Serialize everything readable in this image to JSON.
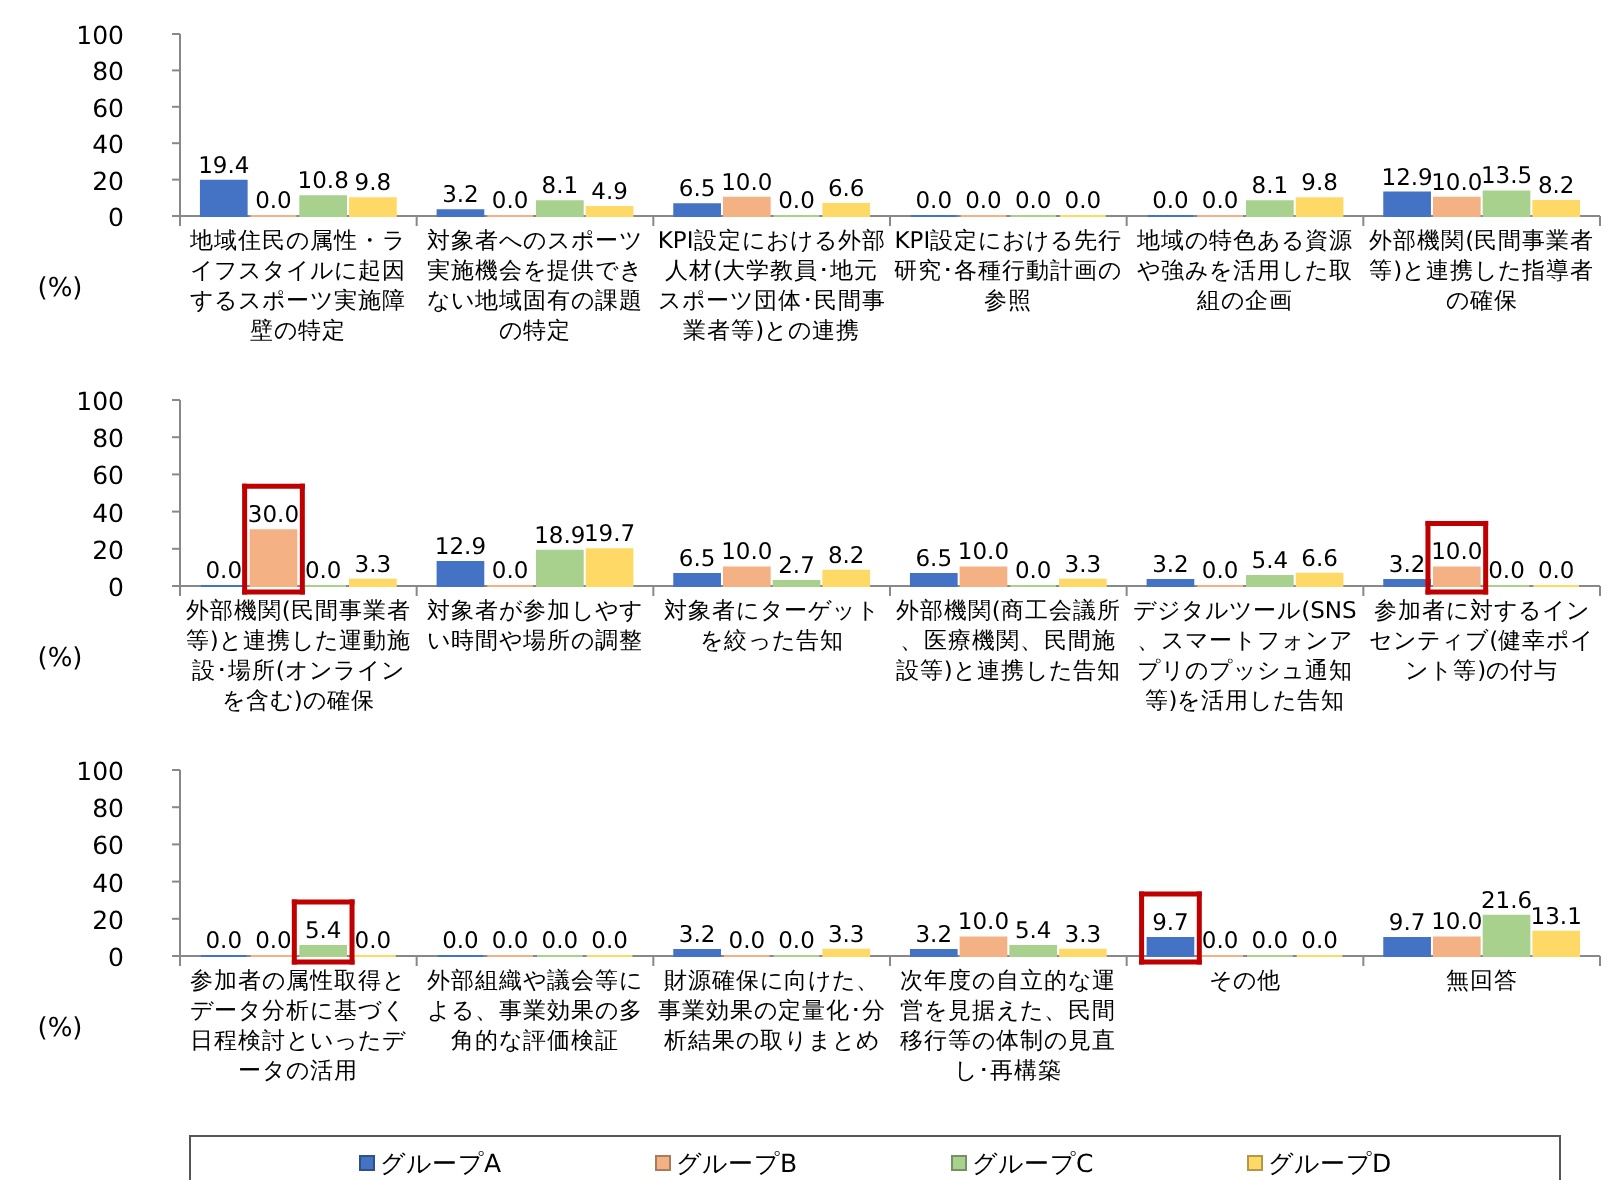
{
  "chart_data": [
    {
      "type": "bar",
      "ylabel": "(%)",
      "categories": [
        "地域住民の属性・ライフスタイルに起因するスポーツ実施障壁の特定",
        "対象者へのスポーツ実施機会を提供できない地域固有の課題の特定",
        "KPI設定における外部人材(大学教員･地元スポーツ団体･民間事業者等)との連携",
        "KPI設定における先行研究･各種行動計画の参照",
        "地域の特色ある資源や強みを活用した取組の企画",
        "外部機関(民間事業者等)と連携した指導者の確保"
      ],
      "series": [
        {
          "color": "#4472c4",
          "values": [
            19.4,
            3.2,
            6.5,
            0.0,
            0.0,
            12.9
          ],
          "value_labels": [
            "19.4",
            "3.2",
            "6.5",
            "0.0",
            "0.0",
            "12.9"
          ]
        },
        {
          "color": "#f4b183",
          "values": [
            0.0,
            0.0,
            10.0,
            0.0,
            0.0,
            10.0
          ],
          "value_labels": [
            "0.0",
            "0.0",
            "10.0",
            "0.0",
            "0.0",
            "10.0"
          ]
        },
        {
          "color": "#a9d18e",
          "values": [
            10.8,
            8.1,
            0.0,
            0.0,
            8.1,
            13.5
          ],
          "value_labels": [
            "10.8",
            "8.1",
            "0.0",
            "0.0",
            "8.1",
            "13.5"
          ]
        },
        {
          "color": "#ffd966",
          "values": [
            9.8,
            4.9,
            6.6,
            0.0,
            9.8,
            8.2
          ],
          "value_labels": [
            "9.8",
            "4.9",
            "6.6",
            "0.0",
            "9.8",
            "8.2"
          ]
        }
      ],
      "ylim": [
        0,
        100
      ],
      "yticks": [
        0,
        20,
        40,
        60,
        80,
        100
      ]
    },
    {
      "type": "bar",
      "ylabel": "(%)",
      "categories": [
        "外部機関(民間事業者等)と連携した運動施設･場所(オンラインを含む)の確保",
        "対象者が参加しやすい時間や場所の調整",
        "対象者にターゲットを絞った告知",
        "外部機関(商工会議所、医療機関、民間施設等)と連携した告知",
        "デジタルツール(SNS、スマートフォンアプリのプッシュ通知等)を活用した告知",
        "参加者に対するインセンティブ(健幸ポイント等)の付与"
      ],
      "series": [
        {
          "color": "#4472c4",
          "values": [
            0.0,
            12.9,
            6.5,
            6.5,
            3.2,
            3.2
          ],
          "value_labels": [
            "0.0",
            "12.9",
            "6.5",
            "6.5",
            "3.2",
            "3.2"
          ]
        },
        {
          "color": "#f4b183",
          "values": [
            30.0,
            0.0,
            10.0,
            10.0,
            0.0,
            10.0
          ],
          "value_labels": [
            "30.0",
            "0.0",
            "10.0",
            "10.0",
            "0.0",
            "10.0"
          ]
        },
        {
          "color": "#a9d18e",
          "values": [
            0.0,
            18.9,
            2.7,
            0.0,
            5.4,
            0.0
          ],
          "value_labels": [
            "0.0",
            "18.9",
            "2.7",
            "0.0",
            "5.4",
            "0.0"
          ]
        },
        {
          "color": "#ffd966",
          "values": [
            3.3,
            19.7,
            8.2,
            3.3,
            6.6,
            0.0
          ],
          "value_labels": [
            "3.3",
            "19.7",
            "8.2",
            "3.3",
            "6.6",
            "0.0"
          ]
        }
      ],
      "ylim": [
        0,
        100
      ],
      "yticks": [
        0,
        20,
        40,
        60,
        80,
        100
      ]
    },
    {
      "type": "bar",
      "ylabel": "(%)",
      "categories": [
        "参加者の属性取得とデータ分析に基づく日程検討といったデータの活用",
        "外部組織や議会等による、事業効果の多角的な評価検証",
        "財源確保に向けた、事業効果の定量化･分析結果の取りまとめ",
        "次年度の自立的な運営を見据えた、民間移行等の体制の見直し･再構築",
        "その他",
        "無回答"
      ],
      "series": [
        {
          "name": "グループA",
          "color": "#4472c4",
          "values": [
            0.0,
            0.0,
            3.2,
            3.2,
            9.7,
            9.7
          ],
          "value_labels": [
            "0.0",
            "0.0",
            "3.2",
            "3.2",
            "9.7",
            "9.7"
          ]
        },
        {
          "name": "グループB",
          "color": "#f4b183",
          "values": [
            0.0,
            0.0,
            0.0,
            10.0,
            0.0,
            10.0
          ],
          "value_labels": [
            "0.0",
            "0.0",
            "0.0",
            "10.0",
            "0.0",
            "10.0"
          ]
        },
        {
          "name": "グループC",
          "color": "#a9d18e",
          "values": [
            5.4,
            0.0,
            0.0,
            5.4,
            0.0,
            21.6
          ],
          "value_labels": [
            "5.4",
            "0.0",
            "0.0",
            "5.4",
            "0.0",
            "21.6"
          ]
        },
        {
          "name": "グループD",
          "color": "#ffd966",
          "values": [
            0.0,
            0.0,
            3.3,
            3.3,
            0.0,
            13.1
          ],
          "value_labels": [
            "0.0",
            "0.0",
            "3.3",
            "3.3",
            "0.0",
            "13.1"
          ]
        }
      ],
      "ylim": [
        0,
        100
      ],
      "yticks": [
        0,
        20,
        40,
        60,
        80,
        100
      ],
      "legend": "bottom"
    }
  ]
}
